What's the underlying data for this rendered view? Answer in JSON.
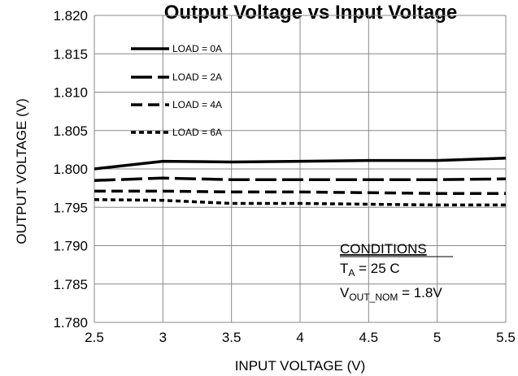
{
  "chart_data": {
    "type": "line",
    "title": "Output Voltage vs Input Voltage",
    "xlabel": "INPUT VOLTAGE (V)",
    "ylabel": "OUTPUT VOLTAGE (V)",
    "xlim": [
      2.5,
      5.5
    ],
    "ylim": [
      1.78,
      1.82
    ],
    "x_ticks": [
      "2.5",
      "3",
      "3.5",
      "4",
      "4.5",
      "5",
      "5.5"
    ],
    "y_ticks": [
      "1.780",
      "1.785",
      "1.790",
      "1.795",
      "1.800",
      "1.805",
      "1.810",
      "1.815",
      "1.820"
    ],
    "grid": true,
    "legend_position": "top-left",
    "series": [
      {
        "name": "LOAD = 0A",
        "style": "solid",
        "x": [
          2.5,
          3.0,
          3.5,
          4.0,
          4.5,
          5.0,
          5.5
        ],
        "y": [
          1.8,
          1.801,
          1.8009,
          1.801,
          1.8011,
          1.8011,
          1.8014
        ]
      },
      {
        "name": "LOAD = 2A",
        "style": "long-dash",
        "x": [
          2.5,
          3.0,
          3.5,
          4.0,
          4.5,
          5.0,
          5.5
        ],
        "y": [
          1.7985,
          1.7988,
          1.7986,
          1.7986,
          1.7986,
          1.7986,
          1.7987
        ]
      },
      {
        "name": "LOAD = 4A",
        "style": "dash",
        "x": [
          2.5,
          3.0,
          3.5,
          4.0,
          4.5,
          5.0,
          5.5
        ],
        "y": [
          1.7971,
          1.7971,
          1.797,
          1.797,
          1.7969,
          1.7968,
          1.7968
        ]
      },
      {
        "name": "LOAD = 6A",
        "style": "short-dash",
        "x": [
          2.5,
          3.0,
          3.5,
          4.0,
          4.5,
          5.0,
          5.5
        ],
        "y": [
          1.796,
          1.7959,
          1.7955,
          1.7955,
          1.7954,
          1.7953,
          1.7953
        ]
      }
    ],
    "conditions": {
      "heading": "CONDITIONS",
      "ta_main": "T",
      "ta_sub": "A",
      "ta_value": " = 25  C",
      "vout_main": "V",
      "vout_sub": "OUT_NOM",
      "vout_value": " = 1.8V"
    }
  }
}
